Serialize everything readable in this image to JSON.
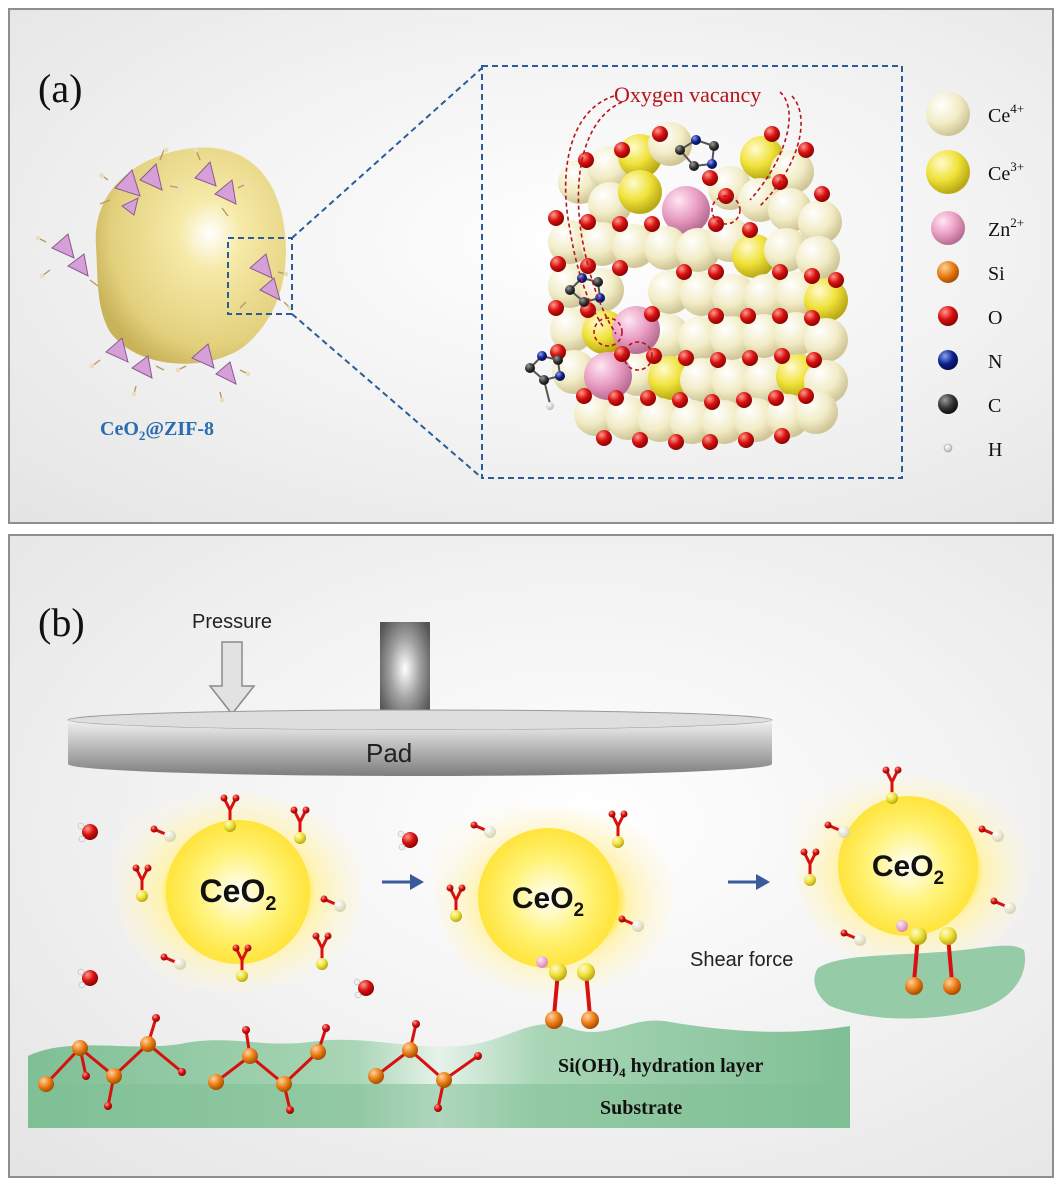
{
  "panel_a": {
    "label": "(a)",
    "particle_caption_main": "CeO",
    "particle_caption_sub": "2",
    "particle_caption_rest": "@ZIF-8",
    "vacancy_label": "Oxygen vacancy",
    "legend": [
      {
        "symbol": "Ce",
        "charge": "4+",
        "color": "#f4efc8"
      },
      {
        "symbol": "Ce",
        "charge": "3+",
        "color": "#f3e63a"
      },
      {
        "symbol": "Zn",
        "charge": "2+",
        "color": "#eaa3c6"
      },
      {
        "symbol": "Si",
        "charge": "",
        "color": "#e8790f"
      },
      {
        "symbol": "O",
        "charge": "",
        "color": "#d8100e"
      },
      {
        "symbol": "N",
        "charge": "",
        "color": "#0a1f8a"
      },
      {
        "symbol": "C",
        "charge": "",
        "color": "#333333"
      },
      {
        "symbol": "H",
        "charge": "",
        "color": "#e6e6e6"
      }
    ]
  },
  "panel_b": {
    "label": "(b)",
    "pressure_label": "Pressure",
    "pad_label": "Pad",
    "particle_main": "CeO",
    "particle_sub": "2",
    "shear_label": "Shear force",
    "hydration_main": "Si(OH)",
    "hydration_sub": "4",
    "hydration_rest": " hydration layer",
    "substrate_label": "Substrate"
  },
  "colors": {
    "frame": "#8e8e8e",
    "dashed_box": "#2a5d98",
    "caption_blue": "#2a6cb0",
    "vacancy_red": "#b4141c",
    "arrow_blue": "#3b5a9a",
    "substrate_green": "#8cc6a0"
  }
}
